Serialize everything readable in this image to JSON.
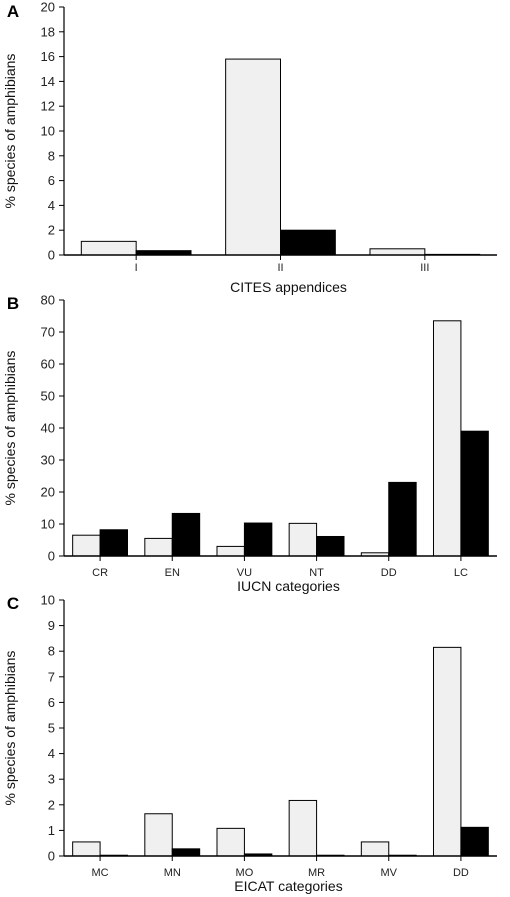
{
  "figure": {
    "colors": {
      "light_bar": "#f0f0f0",
      "dark_bar": "#000000",
      "axis": "#000000",
      "text": "#222222"
    }
  },
  "chart_data": [
    {
      "panel": "A",
      "type": "bar",
      "categories": [
        "I",
        "II",
        "III"
      ],
      "series": [
        {
          "values": [
            1.1,
            15.8,
            0.5
          ]
        },
        {
          "values": [
            0.35,
            2.0,
            0.05
          ]
        }
      ],
      "xlabel": "CITES appendices",
      "ylabel": "% species of amphibians",
      "ylim": [
        0,
        20
      ],
      "yticks": [
        0,
        2,
        4,
        6,
        8,
        10,
        12,
        14,
        16,
        18,
        20
      ],
      "grid": false
    },
    {
      "panel": "B",
      "type": "bar",
      "categories": [
        "CR",
        "EN",
        "VU",
        "NT",
        "DD",
        "LC"
      ],
      "series": [
        {
          "values": [
            6.5,
            5.5,
            3.0,
            10.2,
            1.0,
            73.5
          ]
        },
        {
          "values": [
            8.2,
            13.3,
            10.3,
            6.1,
            23.0,
            39.0
          ]
        }
      ],
      "xlabel": "IUCN categories",
      "ylabel": "% species of amphibians",
      "ylim": [
        0,
        80
      ],
      "yticks": [
        0,
        10,
        20,
        30,
        40,
        50,
        60,
        70,
        80
      ],
      "grid": false
    },
    {
      "panel": "C",
      "type": "bar",
      "categories": [
        "MC",
        "MN",
        "MO",
        "MR",
        "MV",
        "DD"
      ],
      "series": [
        {
          "values": [
            0.55,
            1.65,
            1.08,
            2.17,
            0.55,
            8.15
          ]
        },
        {
          "values": [
            0.03,
            0.28,
            0.08,
            0.03,
            0.03,
            1.12
          ]
        }
      ],
      "xlabel": "EICAT categories",
      "ylabel": "% species of amphibians",
      "ylim": [
        0,
        10
      ],
      "yticks": [
        0,
        1,
        2,
        3,
        4,
        5,
        6,
        7,
        8,
        9,
        10
      ],
      "grid": false
    }
  ]
}
